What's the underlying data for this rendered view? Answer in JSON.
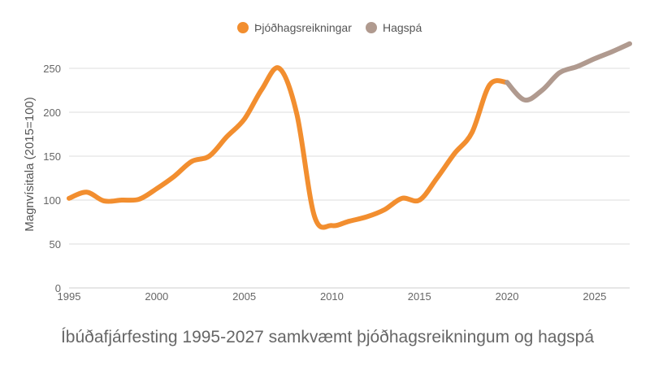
{
  "chart_data": {
    "type": "line",
    "title": "Íbúðafjárfesting 1995-2027 samkvæmt þjóðhagsreikningum og hagspá",
    "ylabel": "Magnvísitala (2015=100)",
    "xlabel": "",
    "xlim": [
      1995,
      2027
    ],
    "ylim": [
      0,
      275
    ],
    "xticks": [
      1995,
      2000,
      2005,
      2010,
      2015,
      2020,
      2025
    ],
    "yticks": [
      0,
      50,
      100,
      150,
      200,
      250
    ],
    "grid": true,
    "legend_position": "top-center",
    "series": [
      {
        "name": "Þjóðhagsreikningar",
        "color": "#f28e2f",
        "x": [
          1995,
          1996,
          1997,
          1998,
          1999,
          2000,
          2001,
          2002,
          2003,
          2004,
          2005,
          2006,
          2007,
          2008,
          2009,
          2010,
          2011,
          2012,
          2013,
          2014,
          2015,
          2016,
          2017,
          2018,
          2019,
          2020
        ],
        "y": [
          102,
          109,
          99,
          100,
          101,
          113,
          127,
          144,
          150,
          172,
          192,
          226,
          250,
          198,
          82,
          71,
          76,
          81,
          89,
          102,
          100,
          125,
          153,
          177,
          231,
          234
        ]
      },
      {
        "name": "Hagspá",
        "color": "#b09a8f",
        "x": [
          2020,
          2021,
          2022,
          2023,
          2024,
          2025,
          2026,
          2027
        ],
        "y": [
          234,
          214,
          225,
          245,
          252,
          261,
          269,
          278
        ]
      }
    ]
  }
}
